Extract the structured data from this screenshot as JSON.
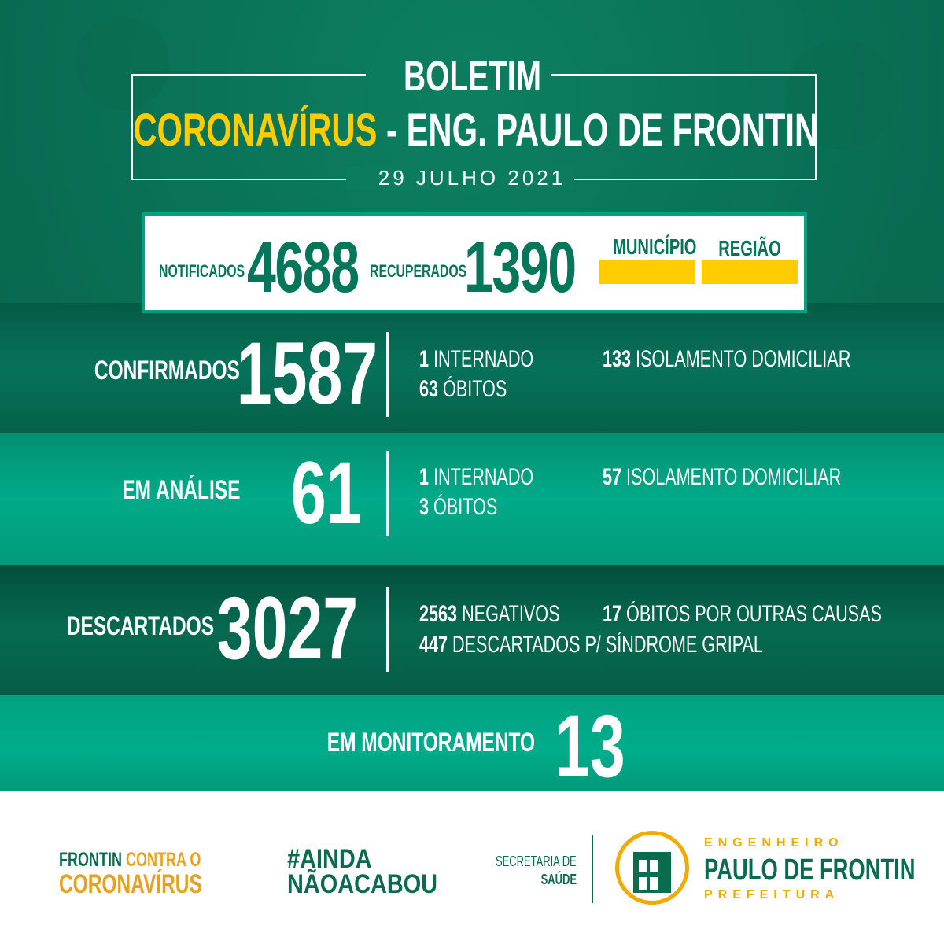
{
  "header": {
    "title": "BOLETIM",
    "subject_highlight": "CORONAVÍRUS",
    "subject_rest": "- ENG. PAULO DE FRONTIN",
    "date": "29 JULHO 2021"
  },
  "summary": {
    "notificados_label": "NOTIFICADOS",
    "notificados": "4688",
    "recuperados_label": "RECUPERADOS",
    "recuperados": "1390",
    "municipio_label": "MUNICÍPIO",
    "regiao_label": "REGIÃO",
    "legend_color": "#ffcc00"
  },
  "confirmados": {
    "label": "CONFIRMADOS",
    "value": "1587",
    "internado_n": "1",
    "internado": "INTERNADO",
    "obitos_n": "63",
    "obitos": "ÓBITOS",
    "isolamento_n": "133",
    "isolamento": "ISOLAMENTO DOMICILIAR"
  },
  "analise": {
    "label": "EM ANÁLISE",
    "value": "61",
    "internado_n": "1",
    "internado": "INTERNADO",
    "obitos_n": "3",
    "obitos": "ÓBITOS",
    "isolamento_n": "57",
    "isolamento": "ISOLAMENTO DOMICILIAR"
  },
  "descartados": {
    "label": "DESCARTADOS",
    "value": "3027",
    "negativos_n": "2563",
    "negativos": "NEGATIVOS",
    "outras_n": "17",
    "outras": "ÓBITOS POR OUTRAS CAUSAS",
    "gripal_n": "447",
    "gripal": "DESCARTADOS P/ SÍNDROME GRIPAL"
  },
  "monitoramento": {
    "label": "EM MONITORAMENTO",
    "value": "13"
  },
  "footer": {
    "campaign_line1a": "FRONTIN",
    "campaign_line1b": "CONTRA O",
    "campaign_line2": "CORONAVÍRUS",
    "hashtag1": "#AINDA",
    "hashtag2": "NÃOACABOU",
    "secretaria1": "SECRETARIA DE",
    "secretaria2": "SAÚDE",
    "pref_top": "ENGENHEIRO",
    "pref_name": "PAULO DE FRONTIN",
    "pref_bottom": "PREFEITURA"
  },
  "colors": {
    "green": "#04765a",
    "yellow": "#ffcc00",
    "orange": "#e8a020"
  }
}
